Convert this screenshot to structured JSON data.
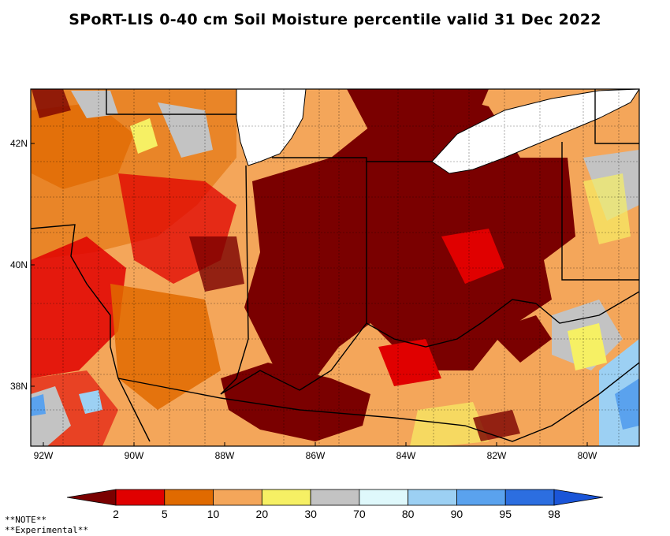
{
  "title": "SPoRT-LIS 0-40 cm Soil Moisture percentile valid 31 Dec 2022",
  "map": {
    "lat_ticks": [
      "42N",
      "40N",
      "38N"
    ],
    "lon_ticks": [
      "92W",
      "90W",
      "88W",
      "86W",
      "84W",
      "82W",
      "80W"
    ],
    "lat_range": [
      37.0,
      42.9
    ],
    "lon_range": [
      -92.4,
      -79.0
    ]
  },
  "colorbar": {
    "labels": [
      "2",
      "5",
      "10",
      "20",
      "30",
      "70",
      "80",
      "90",
      "95",
      "98"
    ],
    "colors": [
      "#7a0000",
      "#e00000",
      "#e06a00",
      "#f4a65a",
      "#f6f064",
      "#c3c3c3",
      "#dff8fb",
      "#9cd0f3",
      "#5aa2ee",
      "#2c6ee0",
      "#1a55d8"
    ]
  },
  "notes": [
    "**NOTE**",
    "**Experimental**"
  ]
}
